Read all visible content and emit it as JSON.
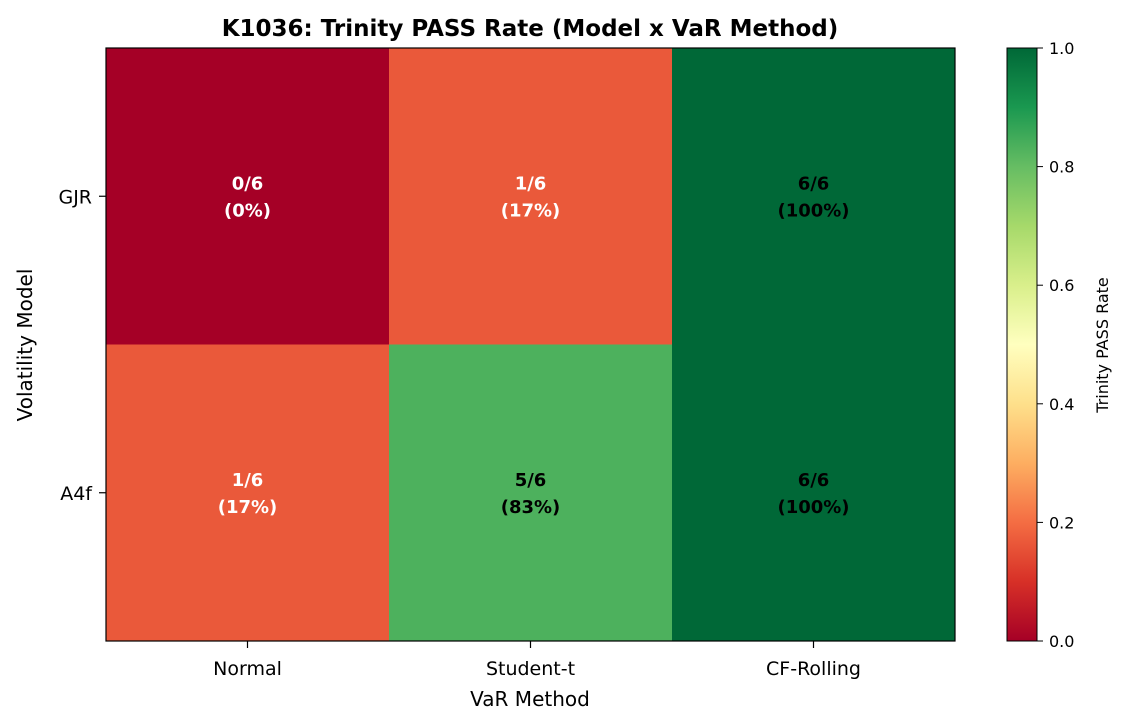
{
  "chart_data": {
    "type": "heatmap",
    "title": "K1036: Trinity PASS Rate (Model x VaR Method)",
    "xlabel": "VaR Method",
    "ylabel": "Volatility Model",
    "x_categories": [
      "Normal",
      "Student-t",
      "CF-Rolling"
    ],
    "y_categories": [
      "GJR",
      "A4f"
    ],
    "values": [
      [
        0.0,
        0.1667,
        1.0
      ],
      [
        0.1667,
        0.8333,
        1.0
      ]
    ],
    "cell_labels": [
      [
        [
          "0/6",
          "(0%)"
        ],
        [
          "1/6",
          "(17%)"
        ],
        [
          "6/6",
          "(100%)"
        ]
      ],
      [
        [
          "1/6",
          "(17%)"
        ],
        [
          "5/6",
          "(83%)"
        ],
        [
          "6/6",
          "(100%)"
        ]
      ]
    ],
    "colormap": "RdYlGn",
    "vmin": 0.0,
    "vmax": 1.0,
    "colorbar": {
      "label": "Trinity PASS Rate",
      "ticks": [
        "0.0",
        "0.2",
        "0.4",
        "0.6",
        "0.8",
        "1.0"
      ]
    }
  }
}
